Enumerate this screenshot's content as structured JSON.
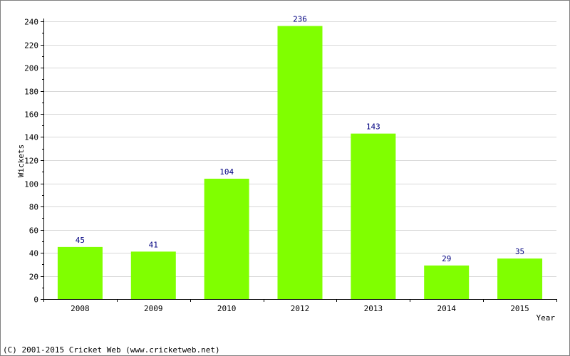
{
  "chart_data": {
    "type": "bar",
    "categories": [
      "2008",
      "2009",
      "2010",
      "2012",
      "2013",
      "2014",
      "2015"
    ],
    "values": [
      45,
      41,
      104,
      236,
      143,
      29,
      35
    ],
    "title": "",
    "xlabel": "Year",
    "ylabel": "Wickets",
    "ylim": [
      0,
      240
    ],
    "yticks": [
      0,
      20,
      40,
      60,
      80,
      100,
      120,
      140,
      160,
      180,
      200,
      220,
      240
    ],
    "grid": true,
    "data_labels": true
  },
  "colors": {
    "bar": "#80ff00",
    "data_label": "#000080",
    "grid": "#d8d8d8",
    "axis": "#000000"
  },
  "footer": {
    "copyright": "(C) 2001-2015 Cricket Web (www.cricketweb.net)"
  }
}
